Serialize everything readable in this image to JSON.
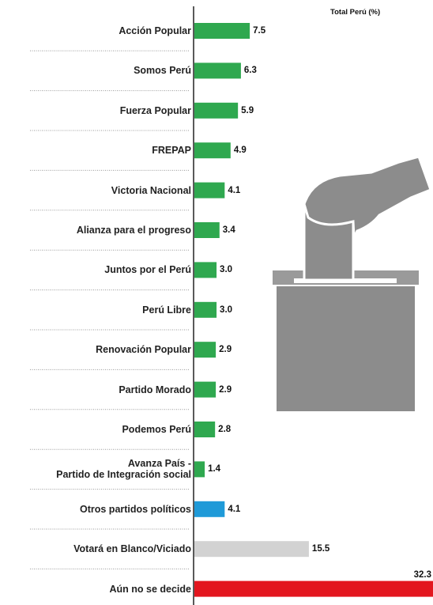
{
  "chart_data": {
    "type": "hbar",
    "title": "Total Perú (%)",
    "categories": [
      "Acción Popular",
      "Somos Perú",
      "Fuerza Popular",
      "FREPAP",
      "Victoria Nacional",
      "Alianza para el progreso",
      "Juntos por el Perú",
      "Perú Libre",
      "Renovación Popular",
      "Partido Morado",
      "Podemos Perú",
      "Avanza País -\nPartido de Integración social",
      "Otros partidos políticos",
      "Votará en Blanco/Viciado",
      "Aún no se decide"
    ],
    "values": [
      7.5,
      6.3,
      5.9,
      4.9,
      4.1,
      3.4,
      3.0,
      3.0,
      2.9,
      2.9,
      2.8,
      1.4,
      4.1,
      15.5,
      32.3
    ],
    "value_labels": [
      "7.5",
      "6.3",
      "5.9",
      "4.9",
      "4.1",
      "3.4",
      "3.0",
      "3.0",
      "2.9",
      "2.9",
      "2.8",
      "1.4",
      "4.1",
      "15.5",
      "32.3"
    ],
    "colors": [
      "#2fa84f",
      "#2fa84f",
      "#2fa84f",
      "#2fa84f",
      "#2fa84f",
      "#2fa84f",
      "#2fa84f",
      "#2fa84f",
      "#2fa84f",
      "#2fa84f",
      "#2fa84f",
      "#2fa84f",
      "#1f9ad8",
      "#d2d2d2",
      "#e3161e"
    ]
  }
}
